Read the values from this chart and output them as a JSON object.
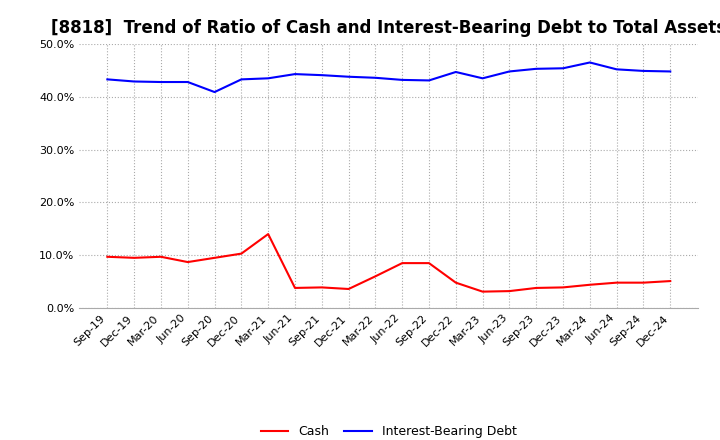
{
  "title": "[8818]  Trend of Ratio of Cash and Interest-Bearing Debt to Total Assets",
  "x_labels": [
    "Sep-19",
    "Dec-19",
    "Mar-20",
    "Jun-20",
    "Sep-20",
    "Dec-20",
    "Mar-21",
    "Jun-21",
    "Sep-21",
    "Dec-21",
    "Mar-22",
    "Jun-22",
    "Sep-22",
    "Dec-22",
    "Mar-23",
    "Jun-23",
    "Sep-23",
    "Dec-23",
    "Mar-24",
    "Jun-24",
    "Sep-24",
    "Dec-24"
  ],
  "cash": [
    9.7,
    9.5,
    9.7,
    8.7,
    9.5,
    10.3,
    14.0,
    3.8,
    3.9,
    3.6,
    6.0,
    8.5,
    8.5,
    4.8,
    3.1,
    3.2,
    3.8,
    3.9,
    4.4,
    4.8,
    4.8,
    5.1
  ],
  "debt": [
    43.3,
    42.9,
    42.8,
    42.8,
    40.9,
    43.3,
    43.5,
    44.3,
    44.1,
    43.8,
    43.6,
    43.2,
    43.1,
    44.7,
    43.5,
    44.8,
    45.3,
    45.4,
    46.5,
    45.2,
    44.9,
    44.8
  ],
  "cash_color": "#FF0000",
  "debt_color": "#0000FF",
  "background_color": "#FFFFFF",
  "grid_color": "#AAAAAA",
  "ylim": [
    0.0,
    50.0
  ],
  "yticks": [
    0.0,
    10.0,
    20.0,
    30.0,
    40.0,
    50.0
  ],
  "legend_labels": [
    "Cash",
    "Interest-Bearing Debt"
  ],
  "title_fontsize": 12,
  "tick_fontsize": 8,
  "legend_fontsize": 9,
  "line_width": 1.5
}
